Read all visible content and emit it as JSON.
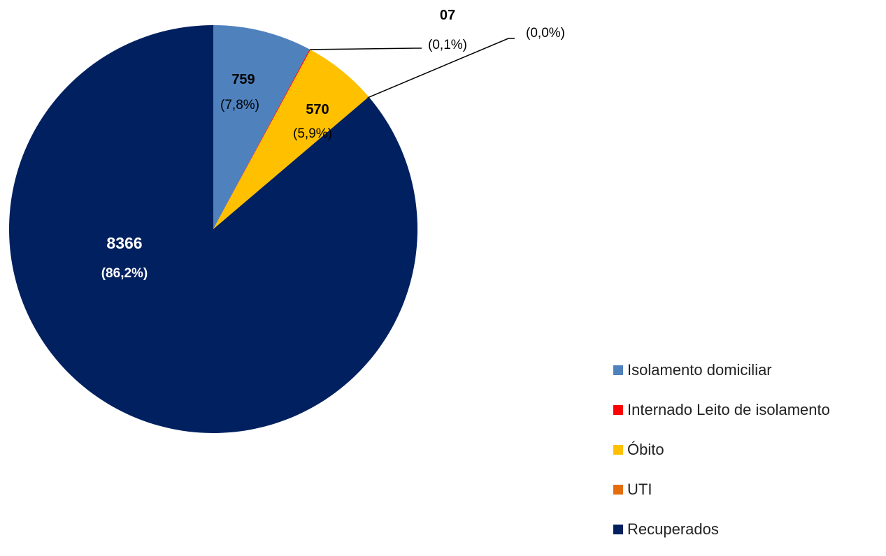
{
  "chart_data": {
    "type": "pie",
    "start_angle_deg": 0,
    "direction": "clockwise",
    "slices": [
      {
        "name": "Isolamento domiciliar",
        "value": 759,
        "value_label": "759",
        "percent_label": "(7,8%)",
        "color": "#4F81BD"
      },
      {
        "name": "Internado Leito de isolamento",
        "value": 7,
        "value_label": "07",
        "percent_label": "(0,1%)",
        "color": "#FF0000"
      },
      {
        "name": "Óbito",
        "value": 570,
        "value_label": "570",
        "percent_label": "(5,9%)",
        "color": "#FFC000"
      },
      {
        "name": "UTI",
        "value": 0,
        "value_label": "",
        "percent_label": "(0,0%)",
        "color": "#E46C0A"
      },
      {
        "name": "Recuperados",
        "value": 8366,
        "value_label": "8366",
        "percent_label": "(86,2%)",
        "color": "#002060"
      }
    ],
    "legend_position": "bottom-right"
  }
}
